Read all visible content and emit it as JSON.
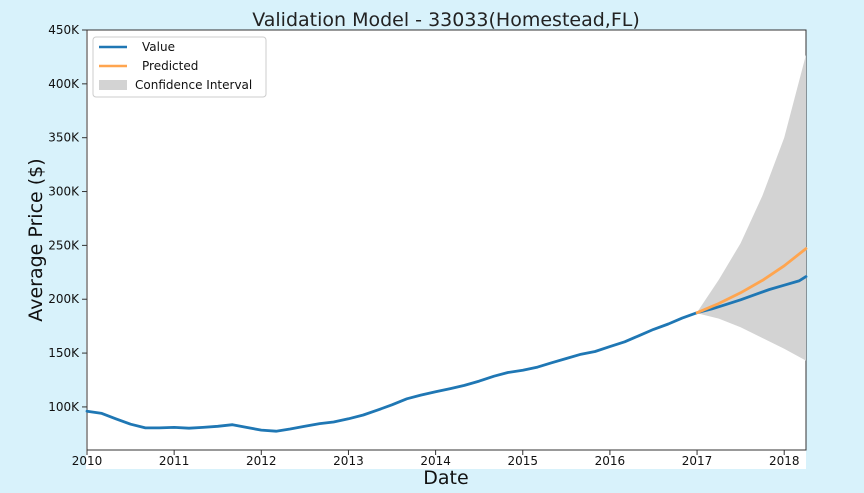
{
  "chart_data": {
    "type": "line",
    "title": "Validation Model - 33033(Homestead,FL)",
    "xlabel": "Date",
    "ylabel": "Average Price ($)",
    "xlim": [
      2010.0,
      2018.25
    ],
    "ylim": [
      60000,
      450000
    ],
    "x_ticks": [
      "2010",
      "2011",
      "2012",
      "2013",
      "2014",
      "2015",
      "2016",
      "2017",
      "2018"
    ],
    "y_ticks": [
      "100K",
      "150K",
      "200K",
      "250K",
      "300K",
      "350K",
      "400K",
      "450K"
    ],
    "y_tick_values": [
      100000,
      150000,
      200000,
      250000,
      300000,
      350000,
      400000,
      450000
    ],
    "grid": false,
    "legend_position": "top-left",
    "series": [
      {
        "name": "Value",
        "color": "#1f77b4",
        "x": [
          2010.0,
          2010.17,
          2010.33,
          2010.5,
          2010.67,
          2010.83,
          2011.0,
          2011.17,
          2011.33,
          2011.5,
          2011.67,
          2011.83,
          2012.0,
          2012.17,
          2012.33,
          2012.5,
          2012.67,
          2012.83,
          2013.0,
          2013.17,
          2013.33,
          2013.5,
          2013.67,
          2013.83,
          2014.0,
          2014.17,
          2014.33,
          2014.5,
          2014.67,
          2014.83,
          2015.0,
          2015.17,
          2015.33,
          2015.5,
          2015.67,
          2015.83,
          2016.0,
          2016.17,
          2016.33,
          2016.5,
          2016.67,
          2016.83,
          2017.0,
          2017.17,
          2017.33,
          2017.5,
          2017.67,
          2017.83,
          2018.0,
          2018.17,
          2018.25
        ],
        "values": [
          96000,
          94000,
          89000,
          84000,
          80500,
          80500,
          81000,
          80200,
          81000,
          82000,
          83500,
          81000,
          78500,
          77500,
          79500,
          82000,
          84500,
          86000,
          89000,
          92500,
          97000,
          102000,
          107500,
          111000,
          114000,
          117000,
          120000,
          124000,
          128500,
          132000,
          134000,
          137000,
          141000,
          145000,
          149000,
          151500,
          156000,
          160500,
          166000,
          172000,
          177000,
          182500,
          187500,
          191000,
          195000,
          199500,
          204500,
          209000,
          213000,
          217000,
          221000
        ]
      },
      {
        "name": "Predicted",
        "color": "#ffa54f",
        "x": [
          2017.0,
          2017.25,
          2017.5,
          2017.75,
          2018.0,
          2018.25
        ],
        "values": [
          187500,
          196000,
          206000,
          217500,
          231000,
          247000
        ]
      }
    ],
    "confidence_interval": {
      "name": "Confidence Interval",
      "color": "#d3d3d3",
      "x": [
        2017.0,
        2017.25,
        2017.5,
        2017.75,
        2018.0,
        2018.25
      ],
      "lower": [
        187000,
        182000,
        174000,
        164000,
        154000,
        143000
      ],
      "upper": [
        188000,
        218000,
        252000,
        296000,
        350000,
        427000
      ]
    }
  }
}
